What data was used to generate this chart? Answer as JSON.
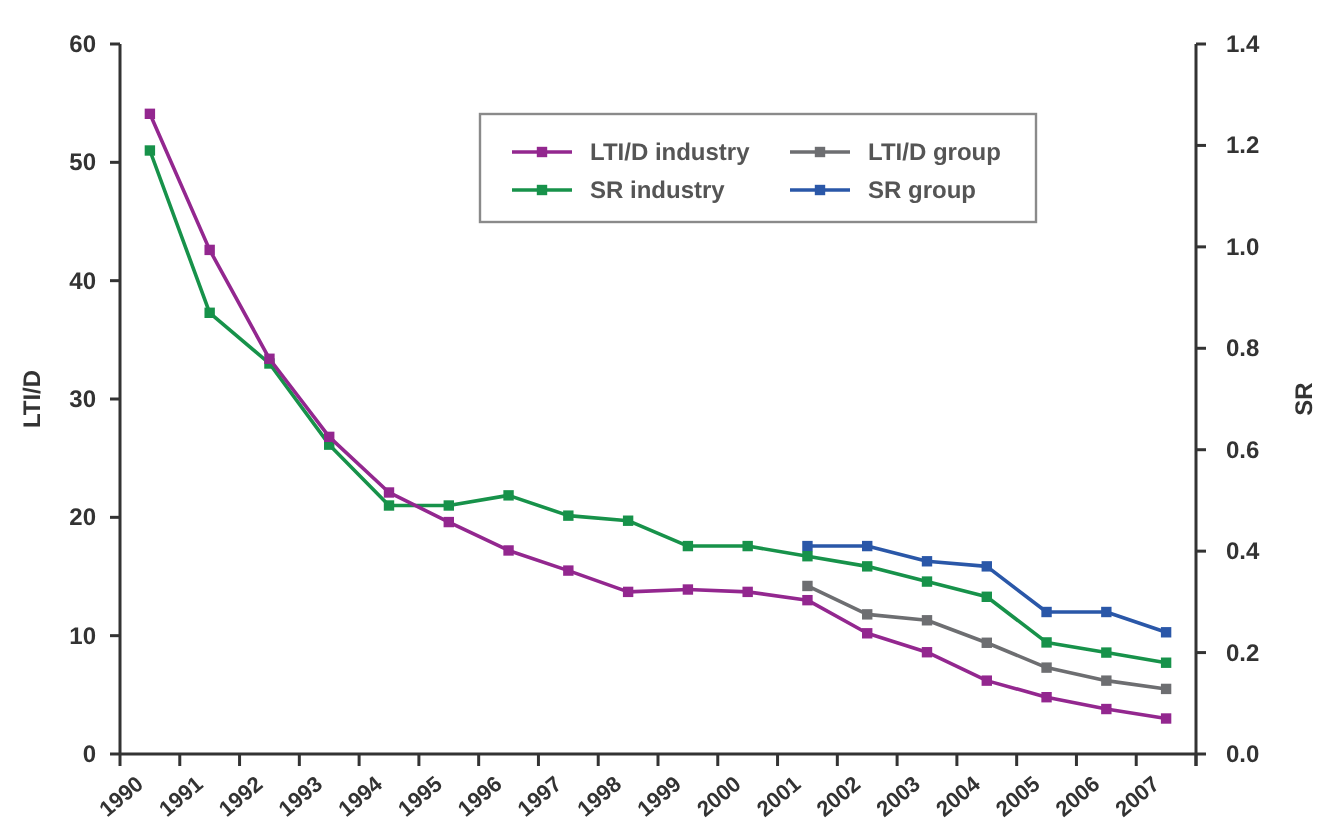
{
  "chart_data": {
    "type": "line",
    "ylabel": "LTI/D",
    "y2label": "SR",
    "categories": [
      "1990",
      "1991",
      "1992",
      "1993",
      "1994",
      "1995",
      "1996",
      "1997",
      "1998",
      "1999",
      "2000",
      "2001",
      "2002",
      "2003",
      "2004",
      "2005",
      "2006",
      "2007"
    ],
    "series": [
      {
        "name": "LTI/D industry",
        "color": "#93278f",
        "values": [
          54.1,
          42.6,
          33.4,
          26.8,
          22.1,
          19.6,
          17.2,
          15.5,
          13.7,
          13.9,
          13.7,
          13.0,
          10.2,
          8.6,
          6.2,
          4.8,
          3.8,
          3.0
        ]
      },
      {
        "name": "SR industry",
        "color": "#17924a",
        "axis": "y2",
        "values": [
          1.19,
          0.87,
          0.77,
          0.61,
          0.49,
          0.49,
          0.51,
          0.47,
          0.46,
          0.41,
          0.41,
          0.39,
          0.37,
          0.34,
          0.31,
          0.22,
          0.2,
          0.18
        ]
      },
      {
        "name": "LTI/D group",
        "color": "#6d6e71",
        "values": [
          null,
          null,
          null,
          null,
          null,
          null,
          null,
          null,
          null,
          null,
          null,
          14.2,
          11.8,
          11.3,
          9.4,
          7.3,
          6.2,
          5.5
        ]
      },
      {
        "name": "SR group",
        "color": "#2a57a8",
        "axis": "y2",
        "values": [
          null,
          null,
          null,
          null,
          null,
          null,
          null,
          null,
          null,
          null,
          null,
          0.41,
          0.41,
          0.38,
          0.37,
          0.28,
          0.28,
          0.24
        ]
      }
    ],
    "ylim": [
      0,
      60
    ],
    "yticks": [
      0,
      10,
      20,
      30,
      40,
      50,
      60
    ],
    "y2lim": [
      0,
      1.4
    ],
    "y2ticks": [
      {
        "value": 0,
        "label": "0.0"
      },
      0.2,
      0.4,
      0.6,
      0.8,
      {
        "value": 1,
        "label": "1.0"
      },
      1.2,
      1.4
    ],
    "legend": "top",
    "marker": "square",
    "line_style": "solid"
  }
}
